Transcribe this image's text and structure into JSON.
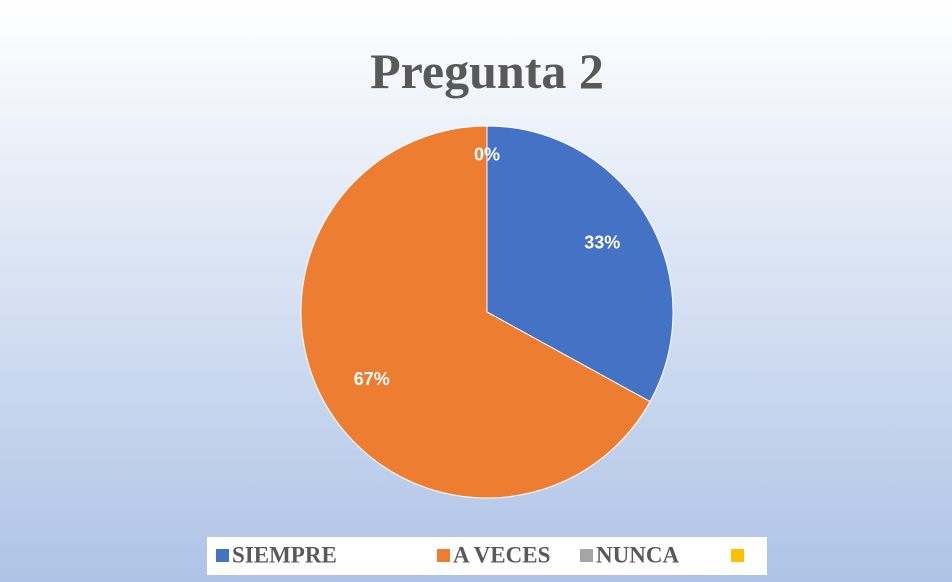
{
  "chart_data": {
    "type": "pie",
    "title": "Pregunta 2",
    "categories": [
      "SIEMPRE",
      "A VECES",
      "NUNCA",
      null
    ],
    "values": [
      33,
      67,
      0,
      0
    ],
    "value_labels": [
      "33%",
      "67%",
      "0%",
      null
    ],
    "colors": [
      "#4472c4",
      "#ed7d31",
      "#a5a5a5",
      "#ffc000"
    ],
    "legend": "bottom"
  }
}
